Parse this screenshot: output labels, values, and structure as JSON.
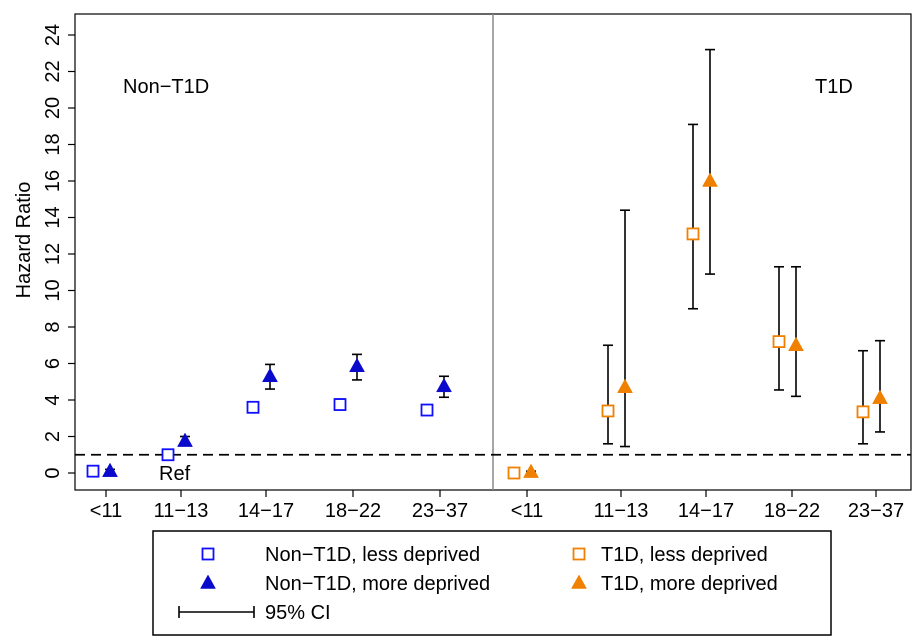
{
  "chart_data": {
    "type": "scatter",
    "ylabel": "Hazard Ratio",
    "ylim": [
      -1.2,
      25
    ],
    "yticks": [
      "0",
      "2",
      "4",
      "6",
      "8",
      "10",
      "12",
      "14",
      "16",
      "18",
      "20",
      "22",
      "24"
    ],
    "reference_line": 1,
    "reference_label": "Ref",
    "ci_label": "95% CI",
    "categories": [
      "<11",
      "11−13",
      "14−17",
      "18−22",
      "23−37"
    ],
    "panels": [
      {
        "label": "Non−T1D",
        "series": [
          {
            "name": "Non−T1D, less deprived",
            "marker": "square-open",
            "color": "#1010ff",
            "values": [
              0.1,
              1.0,
              3.6,
              3.75,
              3.45
            ],
            "ci_low": [
              0,
              1.0,
              3.35,
              3.5,
              3.2
            ],
            "ci_high": [
              0.2,
              1.0,
              3.85,
              4.05,
              3.7
            ]
          },
          {
            "name": "Non−T1D, more deprived",
            "marker": "triangle-filled",
            "color": "#0a0acc",
            "values": [
              0.1,
              1.75,
              5.3,
              5.85,
              4.75
            ],
            "ci_low": [
              0,
              1.5,
              4.6,
              5.1,
              4.15
            ],
            "ci_high": [
              0.2,
              2.0,
              5.95,
              6.5,
              5.3
            ]
          }
        ]
      },
      {
        "label": "T1D",
        "series": [
          {
            "name": "T1D, less deprived",
            "marker": "square-open",
            "color": "#f08000",
            "values": [
              0,
              3.4,
              13.1,
              7.2,
              3.35
            ],
            "ci_low": [
              0,
              1.6,
              9.0,
              4.55,
              1.6
            ],
            "ci_high": [
              0,
              7.0,
              19.1,
              11.3,
              6.7
            ]
          },
          {
            "name": "T1D, more deprived",
            "marker": "triangle-filled",
            "color": "#f08000",
            "values": [
              0.05,
              4.7,
              16.0,
              7.0,
              4.1
            ],
            "ci_low": [
              0,
              1.45,
              10.9,
              4.2,
              2.25
            ],
            "ci_high": [
              0.1,
              14.4,
              23.2,
              11.3,
              7.25
            ]
          }
        ]
      }
    ],
    "legend": {
      "placement": "bottom",
      "entries": [
        "Non−T1D, less deprived",
        "T1D, less deprived",
        "Non−T1D, more deprived",
        "T1D, more deprived",
        "95% CI"
      ]
    }
  }
}
